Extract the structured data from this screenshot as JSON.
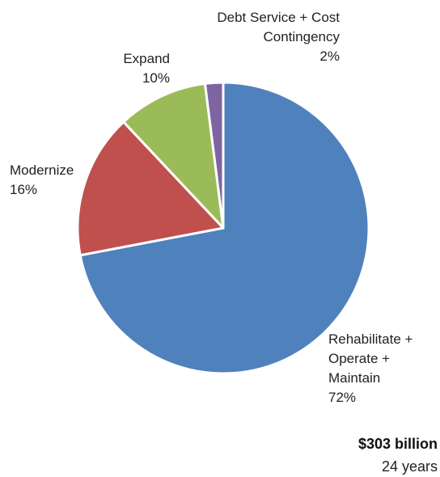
{
  "chart_data": {
    "type": "pie",
    "slices": [
      {
        "label_lines": [
          "Rehabilitate +",
          "Operate +",
          "Maintain"
        ],
        "value": 72,
        "value_label": "72%",
        "color": "#4F81BD"
      },
      {
        "label_lines": [
          "Modernize"
        ],
        "value": 16,
        "value_label": "16%",
        "color": "#C0504D"
      },
      {
        "label_lines": [
          "Expand"
        ],
        "value": 10,
        "value_label": "10%",
        "color": "#9BBB59"
      },
      {
        "label_lines": [
          "Debt Service + Cost",
          "Contingency"
        ],
        "value": 2,
        "value_label": "2%",
        "color": "#8064A2"
      }
    ],
    "start": "12 o'clock",
    "direction": "clockwise",
    "total_label": "$303 billion",
    "period_label": "24 years"
  }
}
